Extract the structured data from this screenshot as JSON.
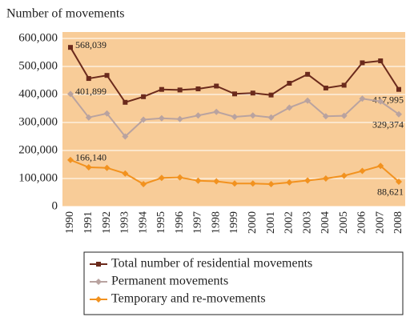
{
  "chart_data": {
    "type": "line",
    "title": "Number of movements",
    "categories": [
      "1990",
      "1991",
      "1992",
      "1993",
      "1994",
      "1995",
      "1996",
      "1997",
      "1998",
      "1999",
      "2000",
      "2001",
      "2002",
      "2003",
      "2004",
      "2005",
      "2006",
      "2007",
      "2008"
    ],
    "series": [
      {
        "name": "Total number of residential movements",
        "color": "#6b2a1c",
        "marker": "square",
        "values": [
          568039,
          457000,
          468000,
          372000,
          392000,
          418000,
          416000,
          420000,
          430000,
          402000,
          405000,
          398000,
          440000,
          472000,
          423000,
          433000,
          513000,
          520000,
          417995
        ],
        "value_labels": [
          "568,039",
          null,
          null,
          null,
          null,
          null,
          null,
          null,
          null,
          null,
          null,
          null,
          null,
          null,
          null,
          null,
          null,
          null,
          "417,995"
        ]
      },
      {
        "name": "Permanent movements",
        "color": "#b9a3a0",
        "marker": "diamond",
        "values": [
          401899,
          318000,
          332000,
          250000,
          310000,
          315000,
          312000,
          325000,
          338000,
          320000,
          325000,
          318000,
          353000,
          378000,
          322000,
          324000,
          385000,
          375000,
          329374
        ],
        "value_labels": [
          "401,899",
          null,
          null,
          null,
          null,
          null,
          null,
          null,
          null,
          null,
          null,
          null,
          null,
          null,
          null,
          null,
          null,
          null,
          "329,374"
        ]
      },
      {
        "name": "Temporary and re-movements",
        "color": "#f2921f",
        "marker": "diamond",
        "values": [
          166140,
          140000,
          138000,
          118000,
          80000,
          102000,
          104000,
          92000,
          90000,
          82000,
          82000,
          80000,
          86000,
          93000,
          100000,
          110000,
          127000,
          145000,
          88621
        ],
        "value_labels": [
          "166,140",
          null,
          null,
          null,
          null,
          null,
          null,
          null,
          null,
          null,
          null,
          null,
          null,
          null,
          null,
          null,
          null,
          null,
          "88,621"
        ]
      }
    ],
    "ylim": [
      0,
      600000
    ],
    "yticks": [
      {
        "value": 0,
        "label": "0"
      },
      {
        "value": 100000,
        "label": "100,000"
      },
      {
        "value": 200000,
        "label": "200,000"
      },
      {
        "value": 300000,
        "label": "300,000"
      },
      {
        "value": 400000,
        "label": "400,000"
      },
      {
        "value": 500000,
        "label": "500,000"
      },
      {
        "value": 600000,
        "label": "600,000"
      }
    ],
    "grid": true,
    "background": "#f8cc98"
  }
}
